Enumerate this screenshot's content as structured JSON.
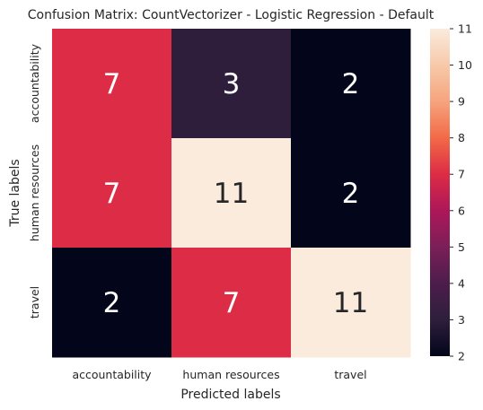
{
  "chart_data": {
    "type": "heatmap",
    "title": "Confusion Matrix: CountVectorizer - Logistic Regression - Default",
    "xlabel": "Predicted labels",
    "ylabel": "True labels",
    "x_categories": [
      "accountability",
      "human resources",
      "travel"
    ],
    "y_categories": [
      "accountability",
      "human resources",
      "travel"
    ],
    "values": [
      [
        7,
        3,
        2
      ],
      [
        7,
        11,
        2
      ],
      [
        2,
        7,
        11
      ]
    ],
    "colorbar": {
      "min": 2,
      "max": 11,
      "ticks": [
        2,
        3,
        4,
        5,
        6,
        7,
        8,
        9,
        10,
        11
      ],
      "colormap": "rocket"
    }
  }
}
